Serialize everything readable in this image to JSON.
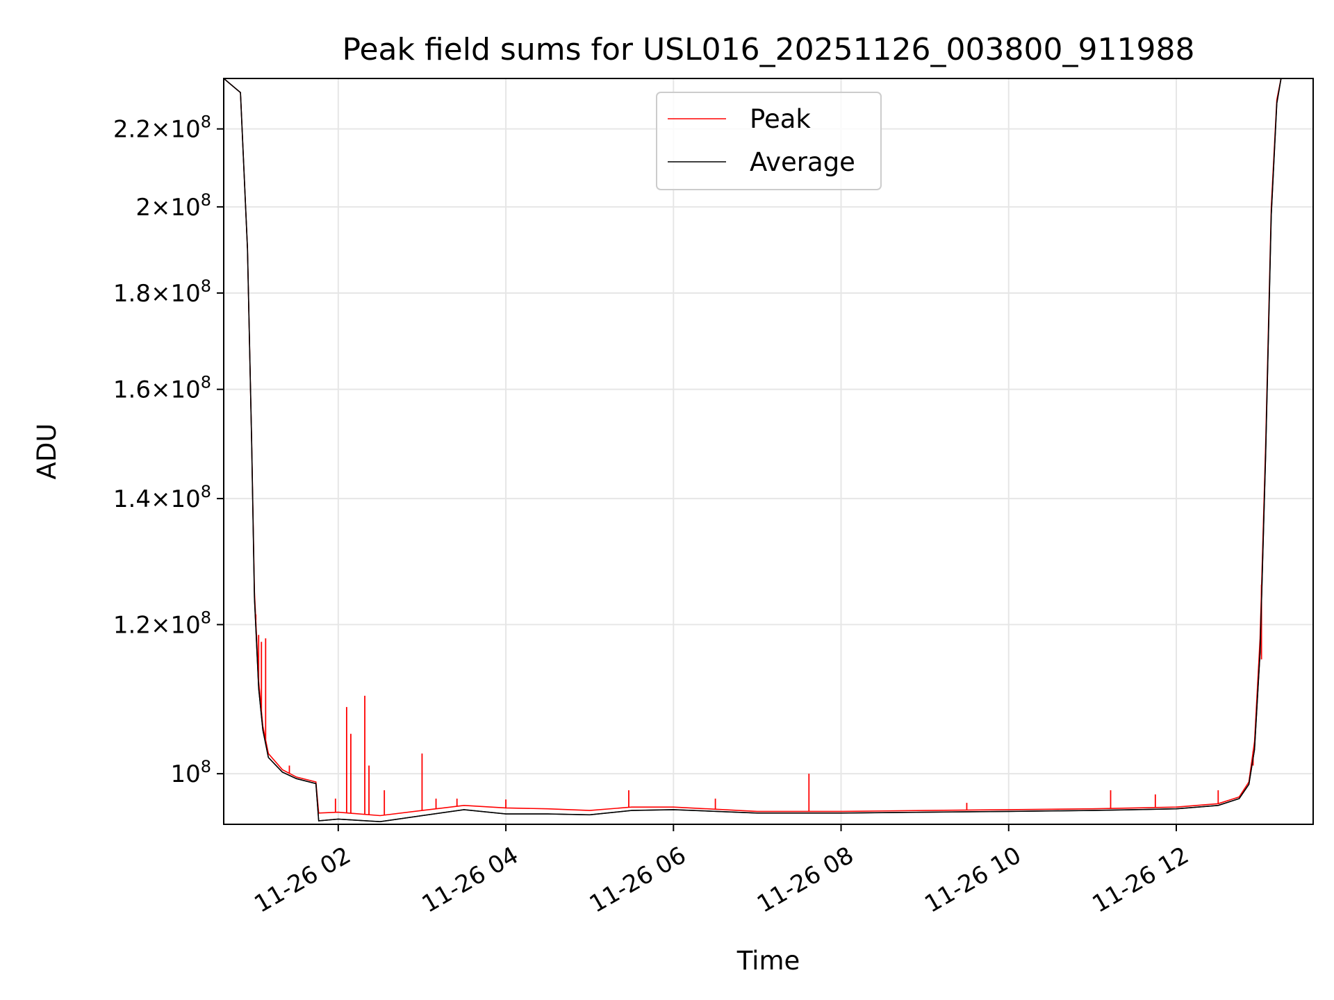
{
  "chart_data": {
    "type": "line",
    "title": "Peak field sums for USL016_20251126_003800_911988",
    "xlabel": "Time",
    "ylabel": "ADU",
    "y_scale": "log",
    "grid": true,
    "legend_placement": "upper-center",
    "x_range": [
      "2025-11-26 00:38",
      "2025-11-26 13:38"
    ],
    "ylim": [
      94000000,
      234000000
    ],
    "x_ticks": [
      {
        "time": "2025-11-26 02:00",
        "label": "11-26 02"
      },
      {
        "time": "2025-11-26 04:00",
        "label": "11-26 04"
      },
      {
        "time": "2025-11-26 06:00",
        "label": "11-26 06"
      },
      {
        "time": "2025-11-26 08:00",
        "label": "11-26 08"
      },
      {
        "time": "2025-11-26 10:00",
        "label": "11-26 10"
      },
      {
        "time": "2025-11-26 12:00",
        "label": "11-26 12"
      }
    ],
    "y_ticks": [
      {
        "value": 100000000,
        "mantissa": "",
        "exponent": "8"
      },
      {
        "value": 120000000,
        "mantissa": "1.2",
        "exponent": "8"
      },
      {
        "value": 140000000,
        "mantissa": "1.4",
        "exponent": "8"
      },
      {
        "value": 160000000,
        "mantissa": "1.6",
        "exponent": "8"
      },
      {
        "value": 180000000,
        "mantissa": "1.8",
        "exponent": "8"
      },
      {
        "value": 200000000,
        "mantissa": "2",
        "exponent": "8"
      },
      {
        "value": 220000000,
        "mantissa": "2.2",
        "exponent": "8"
      }
    ],
    "series": [
      {
        "name": "Peak",
        "color": "#ff0000",
        "points": [
          [
            "2025-11-26 00:38",
            234000000
          ],
          [
            "2025-11-26 00:50",
            230000000
          ],
          [
            "2025-11-26 00:55",
            190000000
          ],
          [
            "2025-11-26 00:58",
            150000000
          ],
          [
            "2025-11-26 01:00",
            125000000
          ],
          [
            "2025-11-26 01:03",
            112000000
          ],
          [
            "2025-11-26 01:06",
            106000000
          ],
          [
            "2025-11-26 01:10",
            102500000
          ],
          [
            "2025-11-26 01:20",
            100500000
          ],
          [
            "2025-11-26 01:30",
            99600000
          ],
          [
            "2025-11-26 01:44",
            99000000
          ],
          [
            "2025-11-26 01:46",
            95300000
          ],
          [
            "2025-11-26 02:00",
            95400000
          ],
          [
            "2025-11-26 02:30",
            95000000
          ],
          [
            "2025-11-26 03:00",
            95600000
          ],
          [
            "2025-11-26 03:30",
            96200000
          ],
          [
            "2025-11-26 04:00",
            95900000
          ],
          [
            "2025-11-26 04:30",
            95800000
          ],
          [
            "2025-11-26 05:00",
            95600000
          ],
          [
            "2025-11-26 05:30",
            96000000
          ],
          [
            "2025-11-26 06:00",
            96000000
          ],
          [
            "2025-11-26 07:00",
            95500000
          ],
          [
            "2025-11-26 08:00",
            95500000
          ],
          [
            "2025-11-26 09:00",
            95600000
          ],
          [
            "2025-11-26 10:00",
            95700000
          ],
          [
            "2025-11-26 11:00",
            95800000
          ],
          [
            "2025-11-26 12:00",
            96000000
          ],
          [
            "2025-11-26 12:30",
            96400000
          ],
          [
            "2025-11-26 12:45",
            97200000
          ],
          [
            "2025-11-26 12:52",
            99000000
          ],
          [
            "2025-11-26 12:56",
            104000000
          ],
          [
            "2025-11-26 13:00",
            118000000
          ],
          [
            "2025-11-26 13:04",
            150000000
          ],
          [
            "2025-11-26 13:08",
            200000000
          ],
          [
            "2025-11-26 13:12",
            228000000
          ],
          [
            "2025-11-26 13:15",
            234000000
          ],
          [
            "2025-11-26 13:38",
            234000000
          ]
        ],
        "spikes": [
          [
            "2025-11-26 01:01",
            121500000
          ],
          [
            "2025-11-26 01:03",
            118500000
          ],
          [
            "2025-11-26 01:05",
            117500000
          ],
          [
            "2025-11-26 01:08",
            118000000
          ],
          [
            "2025-11-26 01:15",
            101500000
          ],
          [
            "2025-11-26 01:25",
            101000000
          ],
          [
            "2025-11-26 01:58",
            97000000
          ],
          [
            "2025-11-26 02:06",
            108500000
          ],
          [
            "2025-11-26 02:09",
            105000000
          ],
          [
            "2025-11-26 02:19",
            110000000
          ],
          [
            "2025-11-26 02:22",
            101000000
          ],
          [
            "2025-11-26 02:33",
            98000000
          ],
          [
            "2025-11-26 03:00",
            102500000
          ],
          [
            "2025-11-26 03:10",
            97000000
          ],
          [
            "2025-11-26 03:25",
            97000000
          ],
          [
            "2025-11-26 04:00",
            96900000
          ],
          [
            "2025-11-26 05:28",
            98000000
          ],
          [
            "2025-11-26 06:30",
            97000000
          ],
          [
            "2025-11-26 07:37",
            100000000
          ],
          [
            "2025-11-26 09:30",
            96500000
          ],
          [
            "2025-11-26 11:13",
            98000000
          ],
          [
            "2025-11-26 11:45",
            97500000
          ],
          [
            "2025-11-26 12:30",
            98000000
          ],
          [
            "2025-11-26 12:55",
            101000000
          ],
          [
            "2025-11-26 13:01",
            115000000
          ]
        ]
      },
      {
        "name": "Average",
        "color": "#000000",
        "points": [
          [
            "2025-11-26 00:38",
            234000000
          ],
          [
            "2025-11-26 00:50",
            230000000
          ],
          [
            "2025-11-26 00:55",
            190000000
          ],
          [
            "2025-11-26 00:58",
            150000000
          ],
          [
            "2025-11-26 01:00",
            124000000
          ],
          [
            "2025-11-26 01:03",
            111000000
          ],
          [
            "2025-11-26 01:06",
            105500000
          ],
          [
            "2025-11-26 01:10",
            102000000
          ],
          [
            "2025-11-26 01:20",
            100200000
          ],
          [
            "2025-11-26 01:30",
            99400000
          ],
          [
            "2025-11-26 01:44",
            98800000
          ],
          [
            "2025-11-26 01:46",
            94400000
          ],
          [
            "2025-11-26 02:00",
            94600000
          ],
          [
            "2025-11-26 02:30",
            94300000
          ],
          [
            "2025-11-26 03:00",
            95000000
          ],
          [
            "2025-11-26 03:30",
            95700000
          ],
          [
            "2025-11-26 04:00",
            95200000
          ],
          [
            "2025-11-26 04:30",
            95200000
          ],
          [
            "2025-11-26 05:00",
            95100000
          ],
          [
            "2025-11-26 05:30",
            95600000
          ],
          [
            "2025-11-26 06:00",
            95700000
          ],
          [
            "2025-11-26 07:00",
            95300000
          ],
          [
            "2025-11-26 08:00",
            95300000
          ],
          [
            "2025-11-26 09:00",
            95400000
          ],
          [
            "2025-11-26 10:00",
            95500000
          ],
          [
            "2025-11-26 11:00",
            95600000
          ],
          [
            "2025-11-26 12:00",
            95800000
          ],
          [
            "2025-11-26 12:30",
            96200000
          ],
          [
            "2025-11-26 12:45",
            97000000
          ],
          [
            "2025-11-26 12:52",
            98700000
          ],
          [
            "2025-11-26 12:56",
            103000000
          ],
          [
            "2025-11-26 13:00",
            116000000
          ],
          [
            "2025-11-26 13:04",
            148000000
          ],
          [
            "2025-11-26 13:08",
            198000000
          ],
          [
            "2025-11-26 13:12",
            227000000
          ],
          [
            "2025-11-26 13:15",
            234000000
          ],
          [
            "2025-11-26 13:38",
            234000000
          ]
        ]
      }
    ]
  }
}
